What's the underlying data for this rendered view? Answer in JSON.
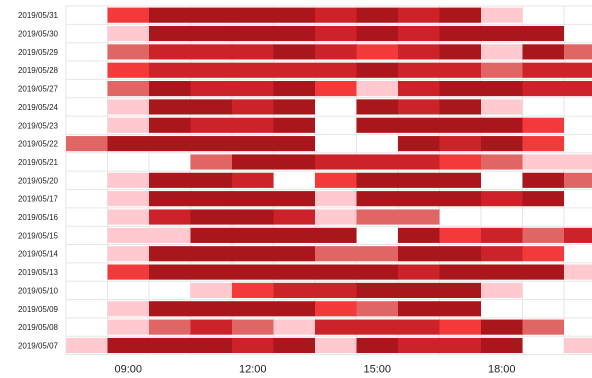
{
  "chart_data": {
    "type": "heatmap",
    "x_ticks": [
      "09:00",
      "12:00",
      "15:00",
      "18:00"
    ],
    "hours": [
      8,
      9,
      10,
      11,
      12,
      13,
      14,
      15,
      16,
      17,
      18,
      19,
      20
    ],
    "rows": [
      {
        "date": "2019/05/31",
        "cells": [
          0,
          3,
          5,
          5,
          5,
          5,
          4,
          5,
          4,
          5,
          1,
          0,
          0
        ]
      },
      {
        "date": "2019/05/30",
        "cells": [
          0,
          1,
          5,
          5,
          5,
          5,
          4,
          5,
          4,
          5,
          5,
          5,
          0
        ]
      },
      {
        "date": "2019/05/29",
        "cells": [
          0,
          2,
          4,
          4,
          4,
          5,
          4,
          3,
          4,
          5,
          1,
          5,
          2
        ]
      },
      {
        "date": "2019/05/28",
        "cells": [
          0,
          3,
          4,
          4,
          4,
          4,
          4,
          5,
          4,
          4,
          2,
          4,
          4
        ]
      },
      {
        "date": "2019/05/27",
        "cells": [
          0,
          2,
          5,
          4,
          4,
          5,
          3,
          1,
          4,
          5,
          5,
          4,
          4
        ]
      },
      {
        "date": "2019/05/24",
        "cells": [
          0,
          1,
          5,
          5,
          4,
          5,
          0,
          5,
          4,
          5,
          1,
          0,
          0
        ]
      },
      {
        "date": "2019/05/23",
        "cells": [
          0,
          1,
          5,
          4,
          4,
          5,
          0,
          5,
          5,
          5,
          5,
          3,
          0
        ]
      },
      {
        "date": "2019/05/22",
        "cells": [
          2,
          5,
          5,
          5,
          5,
          5,
          0,
          0,
          5,
          4,
          5,
          3,
          0
        ]
      },
      {
        "date": "2019/05/21",
        "cells": [
          0,
          0,
          0,
          2,
          5,
          5,
          4,
          4,
          4,
          3,
          2,
          1,
          1
        ]
      },
      {
        "date": "2019/05/20",
        "cells": [
          0,
          1,
          5,
          5,
          4,
          0,
          3,
          5,
          5,
          5,
          0,
          5,
          2
        ]
      },
      {
        "date": "2019/05/17",
        "cells": [
          0,
          1,
          5,
          5,
          5,
          5,
          1,
          5,
          5,
          5,
          4,
          5,
          0
        ]
      },
      {
        "date": "2019/05/16",
        "cells": [
          0,
          1,
          4,
          5,
          5,
          4,
          1,
          2,
          2,
          0,
          0,
          0,
          0
        ]
      },
      {
        "date": "2019/05/15",
        "cells": [
          0,
          1,
          1,
          5,
          5,
          5,
          5,
          0,
          5,
          3,
          4,
          2,
          4
        ]
      },
      {
        "date": "2019/05/14",
        "cells": [
          0,
          1,
          5,
          5,
          5,
          5,
          2,
          2,
          5,
          5,
          4,
          3,
          0
        ]
      },
      {
        "date": "2019/05/13",
        "cells": [
          0,
          3,
          5,
          5,
          5,
          5,
          5,
          5,
          4,
          5,
          5,
          5,
          1
        ]
      },
      {
        "date": "2019/05/10",
        "cells": [
          0,
          0,
          0,
          1,
          3,
          4,
          4,
          5,
          5,
          5,
          1,
          0,
          0
        ]
      },
      {
        "date": "2019/05/09",
        "cells": [
          0,
          1,
          5,
          5,
          5,
          5,
          3,
          2,
          5,
          5,
          0,
          0,
          0
        ]
      },
      {
        "date": "2019/05/08",
        "cells": [
          0,
          1,
          2,
          4,
          2,
          1,
          4,
          4,
          4,
          3,
          5,
          2,
          0
        ]
      },
      {
        "date": "2019/05/07",
        "cells": [
          1,
          5,
          5,
          5,
          4,
          5,
          1,
          5,
          4,
          4,
          5,
          0,
          1
        ]
      }
    ],
    "colors": [
      "#ffffff",
      "#ffc9cf",
      "#e06666",
      "#f23a3a",
      "#cc2229",
      "#a9161b"
    ],
    "grid_color": "#e6e6e6"
  }
}
